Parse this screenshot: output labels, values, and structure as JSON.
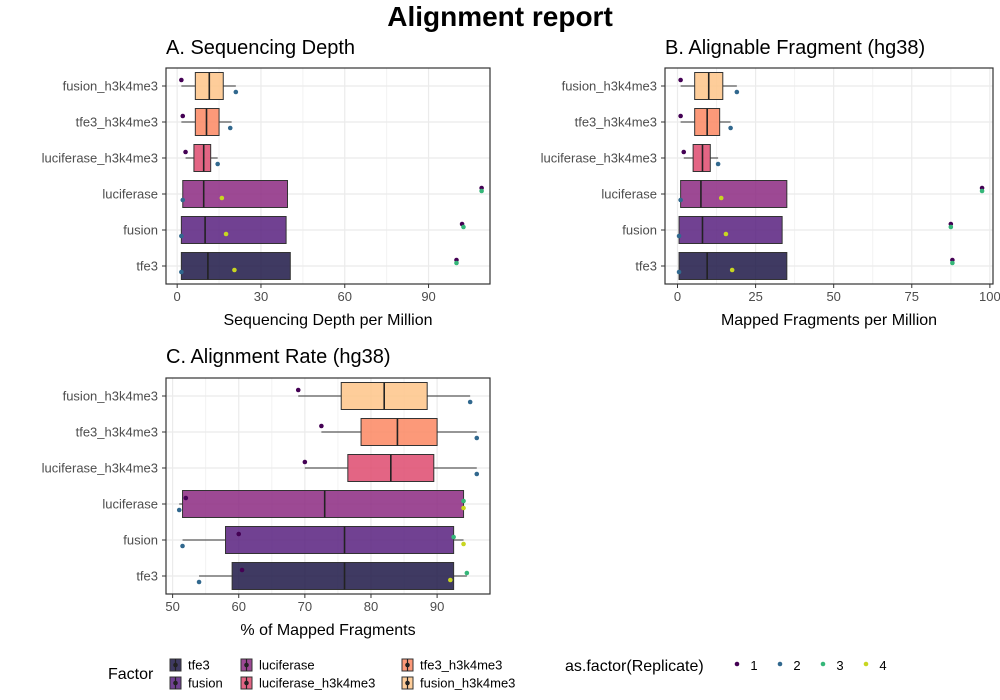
{
  "title": "Alignment report",
  "groups": [
    "tfe3",
    "fusion",
    "luciferase",
    "luciferase_h3k4me3",
    "tfe3_h3k4me3",
    "fusion_h3k4me3"
  ],
  "group_colors": {
    "tfe3": "#1d1846",
    "fusion": "#58207f",
    "luciferase": "#8c2981",
    "luciferase_h3k4me3": "#de4a6f",
    "tfe3_h3k4me3": "#fb8761",
    "fusion_h3k4me3": "#fec488"
  },
  "replicates": [
    "1",
    "2",
    "3",
    "4"
  ],
  "replicate_colors": {
    "1": "#440154",
    "2": "#31688e",
    "3": "#35b779",
    "4": "#c8d621"
  },
  "legend": {
    "factor_title": "Factor",
    "replicate_title": "as.factor(Replicate)"
  },
  "chart_data": [
    {
      "id": "A",
      "type": "boxplot",
      "title": "A. Sequencing Depth",
      "xlabel": "Sequencing Depth per Million",
      "xlim": [
        -4,
        112
      ],
      "xticks": [
        0,
        30,
        60,
        90
      ],
      "boxes": [
        {
          "group": "fusion_h3k4me3",
          "q1": 6.5,
          "median": 11.5,
          "q3": 16.5,
          "wmin": 1.5,
          "wmax": 21
        },
        {
          "group": "tfe3_h3k4me3",
          "q1": 6.5,
          "median": 10.5,
          "q3": 15,
          "wmin": 1.5,
          "wmax": 19.5
        },
        {
          "group": "luciferase_h3k4me3",
          "q1": 6,
          "median": 9.5,
          "q3": 12,
          "wmin": 3,
          "wmax": 14.5
        },
        {
          "group": "luciferase",
          "q1": 2,
          "median": 9.5,
          "q3": 39.5,
          "wmin": 2,
          "wmax": 39.5
        },
        {
          "group": "fusion",
          "q1": 1.5,
          "median": 10,
          "q3": 39,
          "wmin": 1.5,
          "wmax": 39
        },
        {
          "group": "tfe3",
          "q1": 1.5,
          "median": 11,
          "q3": 40.5,
          "wmin": 1.5,
          "wmax": 40.5
        }
      ],
      "points": [
        {
          "group": "fusion_h3k4me3",
          "rep": "1",
          "value": 1.5
        },
        {
          "group": "fusion_h3k4me3",
          "rep": "2",
          "value": 21
        },
        {
          "group": "tfe3_h3k4me3",
          "rep": "1",
          "value": 2
        },
        {
          "group": "tfe3_h3k4me3",
          "rep": "2",
          "value": 19
        },
        {
          "group": "luciferase_h3k4me3",
          "rep": "1",
          "value": 3
        },
        {
          "group": "luciferase_h3k4me3",
          "rep": "2",
          "value": 14.5
        },
        {
          "group": "luciferase",
          "rep": "1",
          "value": 109
        },
        {
          "group": "luciferase",
          "rep": "2",
          "value": 2
        },
        {
          "group": "luciferase",
          "rep": "3",
          "value": 109
        },
        {
          "group": "luciferase",
          "rep": "4",
          "value": 16
        },
        {
          "group": "fusion",
          "rep": "1",
          "value": 102
        },
        {
          "group": "fusion",
          "rep": "2",
          "value": 1.5
        },
        {
          "group": "fusion",
          "rep": "3",
          "value": 102.5
        },
        {
          "group": "fusion",
          "rep": "4",
          "value": 17.5
        },
        {
          "group": "tfe3",
          "rep": "1",
          "value": 100
        },
        {
          "group": "tfe3",
          "rep": "2",
          "value": 1.5
        },
        {
          "group": "tfe3",
          "rep": "3",
          "value": 100
        },
        {
          "group": "tfe3",
          "rep": "4",
          "value": 20.5
        }
      ]
    },
    {
      "id": "B",
      "type": "boxplot",
      "title": "B. Alignable Fragment (hg38)",
      "xlabel": "Mapped Fragments per Million",
      "xlim": [
        -4,
        101
      ],
      "xticks": [
        0,
        25,
        50,
        75,
        100
      ],
      "boxes": [
        {
          "group": "fusion_h3k4me3",
          "q1": 5.5,
          "median": 10,
          "q3": 14.5,
          "wmin": 1,
          "wmax": 19
        },
        {
          "group": "tfe3_h3k4me3",
          "q1": 5.5,
          "median": 9.5,
          "q3": 13.5,
          "wmin": 1,
          "wmax": 17
        },
        {
          "group": "luciferase_h3k4me3",
          "q1": 5,
          "median": 8,
          "q3": 10.5,
          "wmin": 2,
          "wmax": 13
        },
        {
          "group": "luciferase",
          "q1": 1,
          "median": 7.5,
          "q3": 35,
          "wmin": 1,
          "wmax": 35
        },
        {
          "group": "fusion",
          "q1": 0.5,
          "median": 8,
          "q3": 33.5,
          "wmin": 0.5,
          "wmax": 33.5
        },
        {
          "group": "tfe3",
          "q1": 0.5,
          "median": 9.5,
          "q3": 35,
          "wmin": 0.5,
          "wmax": 35
        }
      ],
      "points": [
        {
          "group": "fusion_h3k4me3",
          "rep": "1",
          "value": 1
        },
        {
          "group": "fusion_h3k4me3",
          "rep": "2",
          "value": 19
        },
        {
          "group": "tfe3_h3k4me3",
          "rep": "1",
          "value": 1
        },
        {
          "group": "tfe3_h3k4me3",
          "rep": "2",
          "value": 17
        },
        {
          "group": "luciferase_h3k4me3",
          "rep": "1",
          "value": 2
        },
        {
          "group": "luciferase_h3k4me3",
          "rep": "2",
          "value": 13
        },
        {
          "group": "luciferase",
          "rep": "1",
          "value": 97.5
        },
        {
          "group": "luciferase",
          "rep": "2",
          "value": 1
        },
        {
          "group": "luciferase",
          "rep": "3",
          "value": 97.5
        },
        {
          "group": "luciferase",
          "rep": "4",
          "value": 14
        },
        {
          "group": "fusion",
          "rep": "1",
          "value": 87.5
        },
        {
          "group": "fusion",
          "rep": "2",
          "value": 0.5
        },
        {
          "group": "fusion",
          "rep": "3",
          "value": 87.5
        },
        {
          "group": "fusion",
          "rep": "4",
          "value": 15.5
        },
        {
          "group": "tfe3",
          "rep": "1",
          "value": 88
        },
        {
          "group": "tfe3",
          "rep": "2",
          "value": 0.5
        },
        {
          "group": "tfe3",
          "rep": "3",
          "value": 88
        },
        {
          "group": "tfe3",
          "rep": "4",
          "value": 17.5
        }
      ]
    },
    {
      "id": "C",
      "type": "boxplot",
      "title": "C. Alignment Rate (hg38)",
      "xlabel": "% of Mapped Fragments",
      "xlim": [
        49,
        98
      ],
      "xticks": [
        50,
        60,
        70,
        80,
        90
      ],
      "boxes": [
        {
          "group": "fusion_h3k4me3",
          "q1": 75.5,
          "median": 82,
          "q3": 88.5,
          "wmin": 69,
          "wmax": 95
        },
        {
          "group": "tfe3_h3k4me3",
          "q1": 78.5,
          "median": 84,
          "q3": 90,
          "wmin": 72.5,
          "wmax": 96
        },
        {
          "group": "luciferase_h3k4me3",
          "q1": 76.5,
          "median": 83,
          "q3": 89.5,
          "wmin": 70,
          "wmax": 96
        },
        {
          "group": "luciferase",
          "q1": 51.5,
          "median": 73,
          "q3": 94,
          "wmin": 51,
          "wmax": 94
        },
        {
          "group": "fusion",
          "q1": 58,
          "median": 76,
          "q3": 92.5,
          "wmin": 51.5,
          "wmax": 94
        },
        {
          "group": "tfe3",
          "q1": 59,
          "median": 76,
          "q3": 92.5,
          "wmin": 54,
          "wmax": 94.5
        }
      ],
      "points": [
        {
          "group": "fusion_h3k4me3",
          "rep": "1",
          "value": 69
        },
        {
          "group": "fusion_h3k4me3",
          "rep": "2",
          "value": 95
        },
        {
          "group": "tfe3_h3k4me3",
          "rep": "1",
          "value": 72.5
        },
        {
          "group": "tfe3_h3k4me3",
          "rep": "2",
          "value": 96
        },
        {
          "group": "luciferase_h3k4me3",
          "rep": "1",
          "value": 70
        },
        {
          "group": "luciferase_h3k4me3",
          "rep": "2",
          "value": 96
        },
        {
          "group": "luciferase",
          "rep": "1",
          "value": 52
        },
        {
          "group": "luciferase",
          "rep": "2",
          "value": 51
        },
        {
          "group": "luciferase",
          "rep": "3",
          "value": 94
        },
        {
          "group": "luciferase",
          "rep": "4",
          "value": 94
        },
        {
          "group": "fusion",
          "rep": "1",
          "value": 60
        },
        {
          "group": "fusion",
          "rep": "2",
          "value": 51.5
        },
        {
          "group": "fusion",
          "rep": "3",
          "value": 92.5
        },
        {
          "group": "fusion",
          "rep": "4",
          "value": 94
        },
        {
          "group": "tfe3",
          "rep": "1",
          "value": 60.5
        },
        {
          "group": "tfe3",
          "rep": "2",
          "value": 54
        },
        {
          "group": "tfe3",
          "rep": "3",
          "value": 94.5
        },
        {
          "group": "tfe3",
          "rep": "4",
          "value": 92
        }
      ]
    }
  ]
}
